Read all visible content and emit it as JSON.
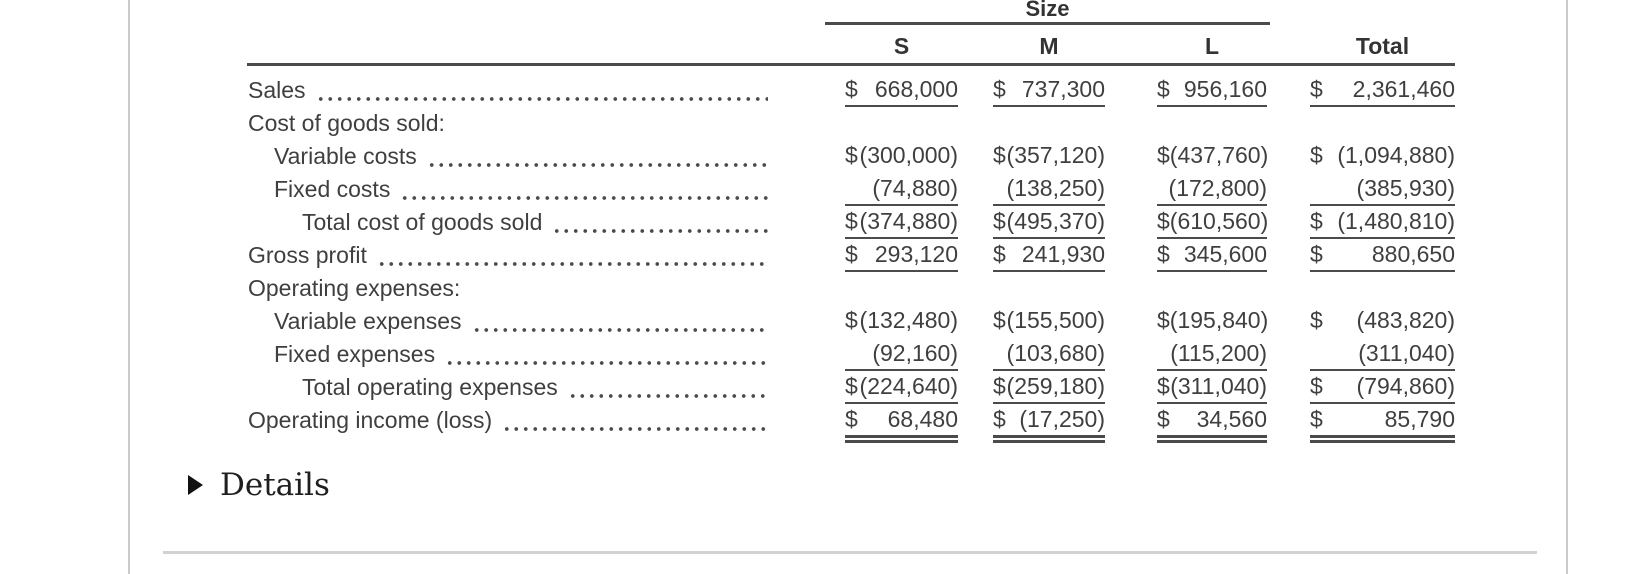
{
  "details": {
    "label": "Details"
  },
  "statement": {
    "size_group_label": "Size",
    "columns": [
      "S",
      "M",
      "L",
      "Total"
    ],
    "rows": [
      {
        "label": "Sales",
        "indent": 0,
        "leader": true,
        "underline": "single",
        "cells": [
          {
            "c": "$",
            "v": "668,000"
          },
          {
            "c": "$",
            "v": "737,300"
          },
          {
            "c": "$",
            "v": "956,160"
          },
          {
            "c": "$",
            "v": "2,361,460"
          }
        ]
      },
      {
        "label": "Cost of goods sold:",
        "indent": 0,
        "leader": false,
        "underline": "none",
        "cells": []
      },
      {
        "label": "Variable costs",
        "indent": 1,
        "leader": true,
        "underline": "none",
        "cells": [
          {
            "c": "$",
            "v": "(300,000)"
          },
          {
            "c": "$",
            "v": "(357,120)"
          },
          {
            "c": "$",
            "v": "(437,760)"
          },
          {
            "c": "$",
            "v": "(1,094,880)"
          }
        ]
      },
      {
        "label": "Fixed costs",
        "indent": 1,
        "leader": true,
        "underline": "single",
        "cells": [
          {
            "c": "",
            "v": "(74,880)"
          },
          {
            "c": "",
            "v": "(138,250)"
          },
          {
            "c": "",
            "v": "(172,800)"
          },
          {
            "c": "",
            "v": "(385,930)"
          }
        ]
      },
      {
        "label": "Total cost of goods sold",
        "indent": 2,
        "leader": true,
        "underline": "single",
        "cells": [
          {
            "c": "$",
            "v": "(374,880)"
          },
          {
            "c": "$",
            "v": "(495,370)"
          },
          {
            "c": "$",
            "v": "(610,560)"
          },
          {
            "c": "$",
            "v": "(1,480,810)"
          }
        ]
      },
      {
        "label": "Gross profit",
        "indent": 0,
        "leader": true,
        "underline": "single",
        "cells": [
          {
            "c": "$",
            "v": "293,120"
          },
          {
            "c": "$",
            "v": "241,930"
          },
          {
            "c": "$",
            "v": "345,600"
          },
          {
            "c": "$",
            "v": "880,650"
          }
        ]
      },
      {
        "label": "Operating expenses:",
        "indent": 0,
        "leader": false,
        "underline": "none",
        "cells": []
      },
      {
        "label": "Variable expenses",
        "indent": 1,
        "leader": true,
        "underline": "none",
        "cells": [
          {
            "c": "$",
            "v": "(132,480)"
          },
          {
            "c": "$",
            "v": "(155,500)"
          },
          {
            "c": "$",
            "v": "(195,840)"
          },
          {
            "c": "$",
            "v": "(483,820)"
          }
        ]
      },
      {
        "label": "Fixed expenses",
        "indent": 1,
        "leader": true,
        "underline": "single",
        "cells": [
          {
            "c": "",
            "v": "(92,160)"
          },
          {
            "c": "",
            "v": "(103,680)"
          },
          {
            "c": "",
            "v": "(115,200)"
          },
          {
            "c": "",
            "v": "(311,040)"
          }
        ]
      },
      {
        "label": "Total operating expenses",
        "indent": 2,
        "leader": true,
        "underline": "single",
        "cells": [
          {
            "c": "$",
            "v": "(224,640)"
          },
          {
            "c": "$",
            "v": "(259,180)"
          },
          {
            "c": "$",
            "v": "(311,040)"
          },
          {
            "c": "$",
            "v": "(794,860)"
          }
        ]
      },
      {
        "label": "Operating income (loss)",
        "indent": 0,
        "leader": true,
        "underline": "double",
        "cells": [
          {
            "c": "$",
            "v": "68,480"
          },
          {
            "c": "$",
            "v": "(17,250)"
          },
          {
            "c": "$",
            "v": "34,560"
          },
          {
            "c": "$",
            "v": "85,790"
          }
        ]
      }
    ]
  }
}
